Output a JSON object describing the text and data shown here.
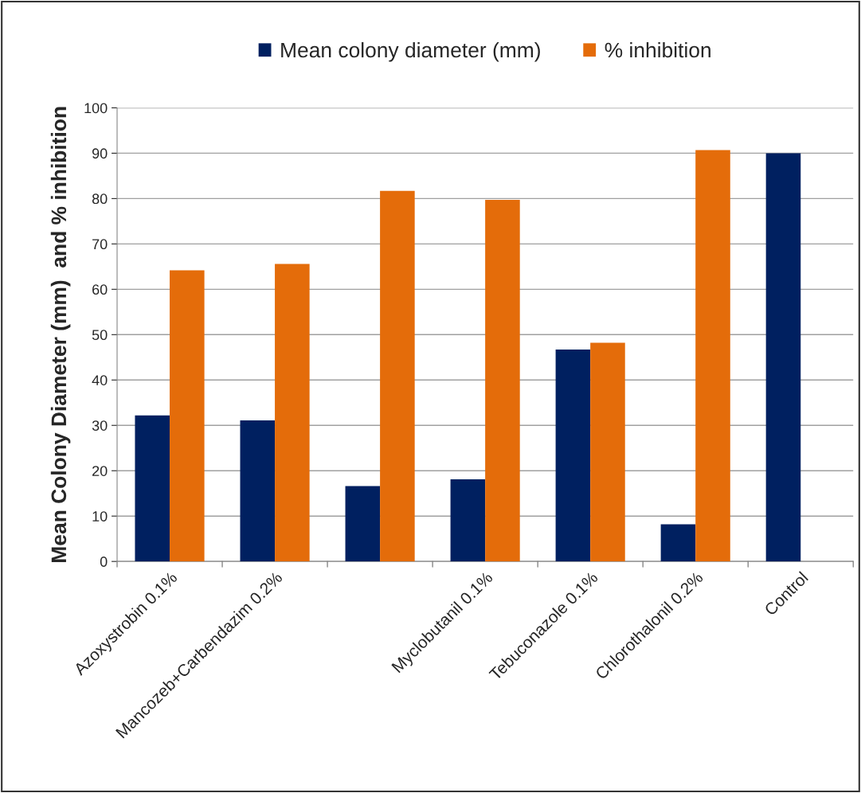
{
  "chart_data": {
    "type": "bar",
    "ylabel": "Mean Colony Diameter (mm)  and % inhibition",
    "categories": [
      "Azoxystrobin 0.1%",
      "Mancozeb+Carbendazim 0.2%",
      null,
      "Myclobutanil 0.1%",
      "Tebuconazole 0.1%",
      "Chlorothalonil 0.2%",
      "Control"
    ],
    "series": [
      {
        "name": "Mean colony diameter (mm)",
        "color": "#002060",
        "values": [
          32.2,
          31.1,
          16.6,
          18.1,
          46.7,
          8.2,
          90.0
        ]
      },
      {
        "name": "% inhibition",
        "color": "#e46c0a",
        "values": [
          64.2,
          65.6,
          81.7,
          79.7,
          48.2,
          90.7,
          null
        ]
      }
    ],
    "ylim": [
      0,
      100
    ],
    "yticks": [
      0,
      10,
      20,
      30,
      40,
      50,
      60,
      70,
      80,
      90,
      100
    ],
    "grid": "y",
    "legend": "top"
  }
}
